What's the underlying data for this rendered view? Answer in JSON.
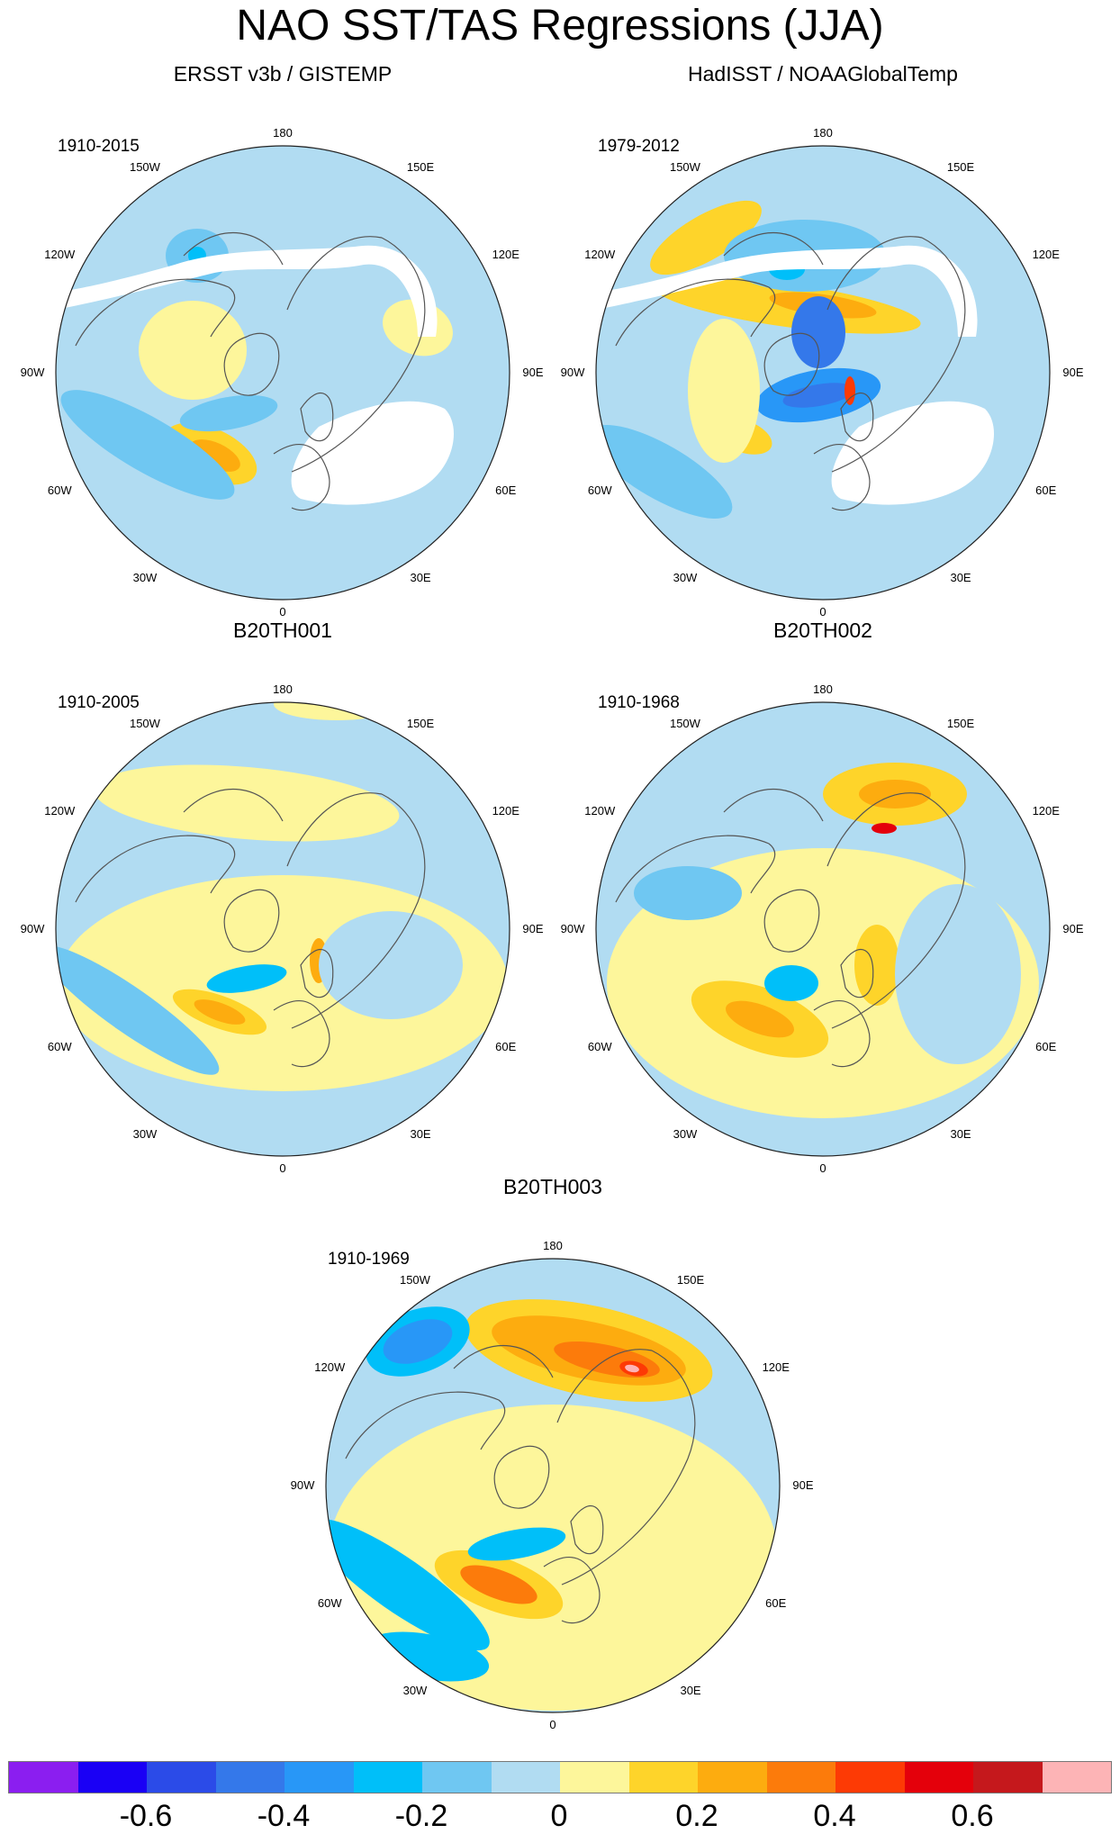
{
  "title": "NAO SST/TAS Regressions (JJA)",
  "longitude_labels": {
    "top": "180",
    "bottom": "0",
    "upper_left": "150W",
    "upper_right": "150E",
    "left_high": "120W",
    "right_high": "120E",
    "left_mid": "90W",
    "right_mid": "90E",
    "left_low": "60W",
    "right_low": "60E",
    "lower_left": "30W",
    "lower_right": "30E"
  },
  "panels": [
    {
      "title": "ERSST v3b / GISTEMP",
      "years": "1910-2015",
      "pattern": "observed_a"
    },
    {
      "title": "HadISST / NOAAGlobalTemp",
      "years": "1979-2012",
      "pattern": "observed_b"
    },
    {
      "title": "B20TH001",
      "years": "1910-2005",
      "pattern": "model_1"
    },
    {
      "title": "B20TH002",
      "years": "1910-1968",
      "pattern": "model_2"
    },
    {
      "title": "B20TH003",
      "years": "1910-1969",
      "pattern": "model_3"
    }
  ],
  "colorbar": {
    "colors": [
      "#8b1ef0",
      "#1a00f5",
      "#2b4be8",
      "#3478ea",
      "#2897f7",
      "#00bff9",
      "#6fc7f2",
      "#b1dcf2",
      "#fdf69b",
      "#fed42a",
      "#fdac0f",
      "#fc7b0b",
      "#fd3a05",
      "#e4000b",
      "#c5181c",
      "#fdb4b6"
    ],
    "tick_labels": [
      "-0.6",
      "-0.4",
      "-0.2",
      "0",
      "0.2",
      "0.4",
      "0.6"
    ],
    "tick_boundaries": [
      2,
      4,
      6,
      8,
      10,
      12,
      14
    ]
  },
  "colors": {
    "ocean_base": "#b1dcf2",
    "missing": "#ffffff",
    "land_outline": "#555555"
  }
}
